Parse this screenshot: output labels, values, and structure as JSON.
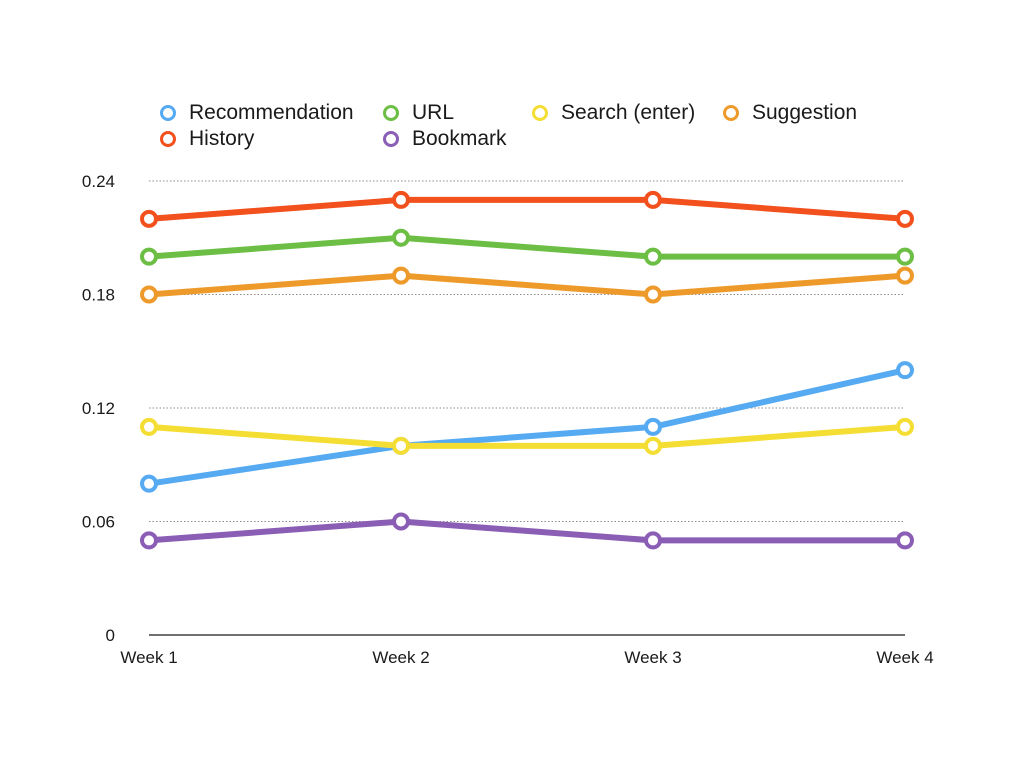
{
  "chart_data": {
    "type": "line",
    "categories": [
      "Week 1",
      "Week 2",
      "Week 3",
      "Week 4"
    ],
    "ylim": [
      0,
      0.24
    ],
    "yticks": [
      "0",
      "0.06",
      "0.12",
      "0.18",
      "0.24"
    ],
    "grid": true,
    "legend_position": "top",
    "series": [
      {
        "name": "Recommendation",
        "color": "#55aaf2",
        "values": [
          0.08,
          0.1,
          0.11,
          0.14
        ]
      },
      {
        "name": "URL",
        "color": "#6cbf44",
        "values": [
          0.2,
          0.21,
          0.2,
          0.2
        ]
      },
      {
        "name": "Search (enter)",
        "color": "#f5de33",
        "values": [
          0.11,
          0.1,
          0.1,
          0.11
        ]
      },
      {
        "name": "Suggestion",
        "color": "#ee9a2a",
        "values": [
          0.18,
          0.19,
          0.18,
          0.19
        ]
      },
      {
        "name": "History",
        "color": "#f2501c",
        "values": [
          0.22,
          0.23,
          0.23,
          0.22
        ]
      },
      {
        "name": "Bookmark",
        "color": "#8a5eb5",
        "values": [
          0.05,
          0.06,
          0.05,
          0.05
        ]
      }
    ]
  }
}
